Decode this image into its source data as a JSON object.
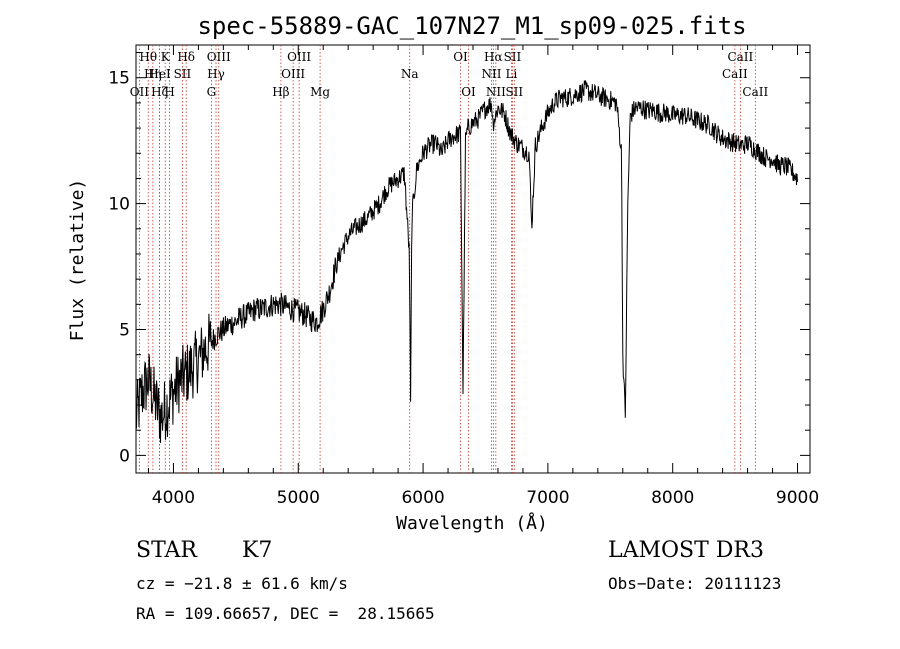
{
  "chart_data": {
    "type": "line",
    "title": "spec-55889-GAC_107N27_M1_sp09-025.fits",
    "xlabel": "Wavelength (Å)",
    "ylabel": "Flux (relative)",
    "xlim": [
      3700,
      9100
    ],
    "ylim": [
      -0.7,
      16.3
    ],
    "xticks": [
      4000,
      5000,
      6000,
      7000,
      8000,
      9000
    ],
    "yticks": [
      0,
      5,
      10,
      15
    ],
    "series": [
      {
        "name": "flux",
        "x": [
          3700,
          3750,
          3800,
          3850,
          3900,
          3950,
          4000,
          4050,
          4100,
          4150,
          4200,
          4250,
          4300,
          4350,
          4400,
          4450,
          4500,
          4550,
          4600,
          4650,
          4700,
          4750,
          4800,
          4850,
          4900,
          4950,
          5000,
          5050,
          5100,
          5150,
          5200,
          5250,
          5300,
          5350,
          5400,
          5450,
          5500,
          5550,
          5600,
          5650,
          5700,
          5750,
          5800,
          5850,
          5890,
          5900,
          5910,
          5950,
          6000,
          6050,
          6100,
          6150,
          6200,
          6250,
          6300,
          6320,
          6340,
          6360,
          6400,
          6450,
          6500,
          6550,
          6560,
          6600,
          6650,
          6700,
          6750,
          6800,
          6850,
          6870,
          6900,
          6950,
          7000,
          7050,
          7100,
          7150,
          7200,
          7250,
          7300,
          7350,
          7400,
          7450,
          7500,
          7550,
          7590,
          7600,
          7620,
          7640,
          7660,
          7700,
          7750,
          7800,
          7850,
          7900,
          7950,
          8000,
          8050,
          8100,
          8150,
          8200,
          8250,
          8300,
          8350,
          8400,
          8450,
          8500,
          8550,
          8600,
          8650,
          8700,
          8750,
          8800,
          8850,
          8900,
          8950,
          9000
        ],
        "y": [
          1.5,
          2.5,
          3.0,
          2.2,
          1.5,
          2.0,
          2.5,
          3.0,
          3.2,
          3.5,
          3.8,
          4.2,
          4.5,
          4.8,
          5.0,
          5.2,
          5.3,
          5.5,
          5.6,
          5.8,
          5.8,
          5.9,
          6.0,
          6.0,
          5.9,
          5.8,
          5.7,
          5.6,
          5.4,
          5.3,
          5.8,
          6.5,
          7.5,
          8.2,
          8.7,
          9.0,
          9.2,
          9.4,
          9.7,
          10.0,
          10.5,
          10.8,
          11.0,
          11.2,
          8.0,
          2.0,
          9.5,
          11.4,
          12.0,
          12.3,
          12.4,
          12.0,
          12.5,
          12.7,
          12.8,
          2.5,
          12.5,
          13.0,
          13.2,
          13.4,
          13.8,
          14.0,
          13.2,
          13.8,
          13.6,
          12.8,
          12.4,
          12.2,
          12.0,
          9.0,
          12.3,
          13.0,
          13.6,
          14.0,
          14.2,
          14.2,
          14.3,
          14.4,
          14.5,
          14.4,
          14.3,
          14.2,
          14.1,
          14.0,
          12.0,
          4.0,
          1.5,
          10.0,
          13.5,
          13.8,
          13.8,
          13.7,
          13.7,
          13.6,
          13.6,
          13.5,
          13.5,
          13.5,
          13.4,
          13.3,
          13.2,
          13.1,
          12.8,
          12.6,
          12.5,
          12.4,
          12.3,
          12.4,
          12.2,
          12.0,
          11.8,
          11.8,
          11.5,
          11.5,
          11.3,
          11.0
        ]
      }
    ],
    "lines": [
      {
        "label": "Hθ",
        "x": 3798,
        "row": 0
      },
      {
        "label": "OII",
        "x": 3727,
        "row": 2
      },
      {
        "label": "Hη",
        "x": 3835,
        "row": 1
      },
      {
        "label": "Hζ",
        "x": 3889,
        "row": 2
      },
      {
        "label": "K",
        "x": 3934,
        "row": 0
      },
      {
        "label": "HeI",
        "x": 3889,
        "row": 1
      },
      {
        "label": "H",
        "x": 3969,
        "row": 2
      },
      {
        "label": "SII",
        "x": 4072,
        "row": 1
      },
      {
        "label": "Hδ",
        "x": 4102,
        "row": 0
      },
      {
        "label": "Hγ",
        "x": 4341,
        "row": 1
      },
      {
        "label": "OIII",
        "x": 4363,
        "row": 0
      },
      {
        "label": "G",
        "x": 4304,
        "row": 2
      },
      {
        "label": "Hβ",
        "x": 4861,
        "row": 2
      },
      {
        "label": "OIII",
        "x": 4959,
        "row": 1
      },
      {
        "label": "OIII",
        "x": 5007,
        "row": 0
      },
      {
        "label": "Mg",
        "x": 5175,
        "row": 2
      },
      {
        "label": "Na",
        "x": 5893,
        "row": 1
      },
      {
        "label": "OI",
        "x": 6300,
        "row": 0
      },
      {
        "label": "OI",
        "x": 6364,
        "row": 2
      },
      {
        "label": "NII",
        "x": 6548,
        "row": 1
      },
      {
        "label": "Hα",
        "x": 6563,
        "row": 0
      },
      {
        "label": "NII",
        "x": 6583,
        "row": 2
      },
      {
        "label": "Li",
        "x": 6708,
        "row": 1
      },
      {
        "label": "SII",
        "x": 6716,
        "row": 0
      },
      {
        "label": "SII",
        "x": 6731,
        "row": 2
      },
      {
        "label": "CaII",
        "x": 8498,
        "row": 1
      },
      {
        "label": "CaII",
        "x": 8542,
        "row": 0
      },
      {
        "label": "CaII",
        "x": 8662,
        "row": 2
      }
    ]
  },
  "info": {
    "class": "STAR",
    "subclass": "K7",
    "survey": "LAMOST DR3",
    "cz": "cz = −21.8 ± 61.6 km/s",
    "obs_date": "Obs−Date: 20111123",
    "coords": "RA = 109.66657, DEC =  28.15665"
  }
}
